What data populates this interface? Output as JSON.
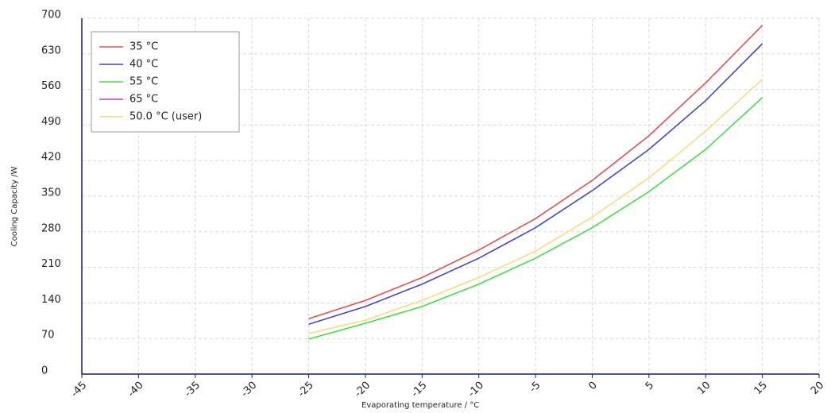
{
  "chart_data": {
    "type": "line",
    "xlabel": "Evaporating temperature / °C",
    "ylabel": "Cooling Capacity /W",
    "x": [
      -25,
      -20,
      -15,
      -10,
      -5,
      0,
      5,
      10,
      15
    ],
    "series": [
      {
        "name": "35 °C",
        "color": "#e05050",
        "values": [
          109,
          145,
          190,
          244,
          306,
          381,
          469,
          573,
          686
        ]
      },
      {
        "name": "40 °C",
        "color": "#4545c8",
        "values": [
          98,
          133,
          177,
          228,
          288,
          361,
          442,
          538,
          650
        ]
      },
      {
        "name": "55 °C",
        "color": "#44dd44",
        "values": [
          69,
          100,
          133,
          177,
          228,
          288,
          359,
          442,
          544
        ]
      },
      {
        "name": "65 °C",
        "color": "#c040c0",
        "values": [
          null,
          null,
          null,
          null,
          null,
          null,
          null,
          null,
          null
        ]
      },
      {
        "name": "50.0 °C (user)",
        "color": "#f6dc84",
        "values": [
          80,
          106,
          145,
          190,
          242,
          309,
          386,
          478,
          580
        ]
      }
    ],
    "xlim": [
      -45,
      20
    ],
    "xticks": [
      -45,
      -40,
      -35,
      -30,
      -25,
      -20,
      -15,
      -10,
      -5,
      0,
      5,
      10,
      15,
      20
    ],
    "ylim": [
      0,
      700
    ],
    "yticks": [
      0,
      70,
      140,
      210,
      280,
      350,
      420,
      490,
      560,
      630,
      700
    ],
    "grid": true,
    "legend": "upper left"
  }
}
